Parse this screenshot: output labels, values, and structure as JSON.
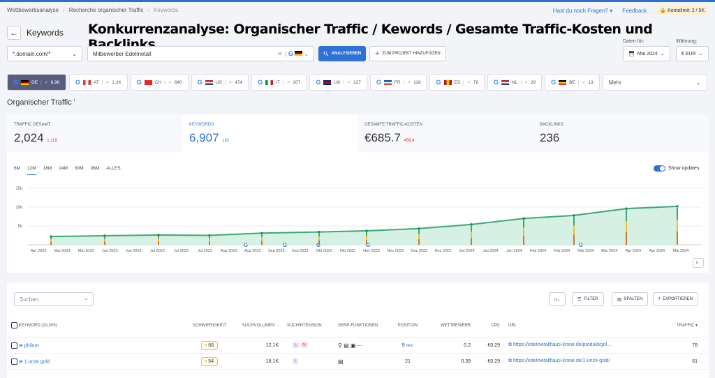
{
  "breadcrumb": [
    "Wettbewerbsanalyse",
    "Recherche organischer Traffic",
    "Keywords"
  ],
  "top": {
    "help": "Hast du noch Fragen?",
    "feedback": "Feedback",
    "limit": "Kontolimit: 2 / 5K"
  },
  "page_title": "Keywords",
  "overlay_title": "Konkurrenzanalyse: Organischer Traffic / Kewords / Gesamte Traffic-Kosten und Backlinks",
  "search": {
    "scope": "*.domain.com/*",
    "query": "Mitbewerber Edelmetall",
    "analyze": "ANALYSIEREN",
    "add_project": "ZUM PROJEKT HINZUFÜGEN",
    "date_label": "Daten für:",
    "date": "Mai 2024",
    "currency_label": "Währung:",
    "currency": "€ EUR"
  },
  "countries": [
    {
      "code": "DE",
      "count": "6.9K",
      "colors": [
        "#000",
        "#d00",
        "#fc0"
      ]
    },
    {
      "code": "AT",
      "count": "1.2K",
      "colors": [
        "#e33",
        "#fff",
        "#e33"
      ]
    },
    {
      "code": "CH",
      "count": "640",
      "colors": [
        "#e22",
        "#e22",
        "#e22"
      ]
    },
    {
      "code": "US",
      "count": "474",
      "colors": [
        "#b22",
        "#fff",
        "#3c3b6e"
      ]
    },
    {
      "code": "IT",
      "count": "207",
      "colors": [
        "#093",
        "#fff",
        "#c22"
      ]
    },
    {
      "code": "UK",
      "count": "127",
      "colors": [
        "#012169",
        "#c8102e",
        "#012169"
      ]
    },
    {
      "code": "FR",
      "count": "118",
      "colors": [
        "#0055a4",
        "#fff",
        "#ef4135"
      ]
    },
    {
      "code": "ES",
      "count": "78",
      "colors": [
        "#c60b1e",
        "#ffc400",
        "#c60b1e"
      ]
    },
    {
      "code": "NL",
      "count": "29",
      "colors": [
        "#ae1c28",
        "#fff",
        "#21468b"
      ]
    },
    {
      "code": "BE",
      "count": "13",
      "colors": [
        "#000",
        "#fdda24",
        "#ef3340"
      ]
    }
  ],
  "more": "Mehr",
  "section_title": "Organischer Traffic",
  "metrics": [
    {
      "label": "TRAFFIC GESAMT",
      "value": "2,024",
      "delta": "1,119",
      "delta_color": "#d33"
    },
    {
      "label": "KEYWORDS",
      "value": "6,907",
      "delta": "182",
      "delta_color": "#2a9d5c"
    },
    {
      "label": "GESAMTE TRAFFIC-KOSTEN",
      "value": "€685.7",
      "delta": "458.4",
      "delta_color": "#d33"
    },
    {
      "label": "BACKLINKS",
      "value": "236",
      "delta": "",
      "delta_color": "#d33"
    }
  ],
  "periods": [
    "6M",
    "12M",
    "18M",
    "24M",
    "30M",
    "36M",
    "ALLES"
  ],
  "active_period": "12M",
  "show_updates": "Show updates",
  "chart_data": {
    "type": "area",
    "y_ticks": [
      "5k",
      "10k",
      "15k"
    ],
    "ylim": [
      0,
      15000
    ],
    "x_tick_labels": [
      "Apr 2023",
      "Mai 2023",
      "Mai 2023",
      "Jun 2023",
      "Jun 2023",
      "Jul 2023",
      "Jul 2023",
      "Jul 2023",
      "Aug 2023",
      "Aug 2023",
      "Sep 2023",
      "Sep 2023",
      "Okt 2023",
      "Okt 2023",
      "Nov 2023",
      "Nov 2023",
      "Dez 2023",
      "Dez 2023",
      "Jan 2024",
      "Jan 2024",
      "Jan 2024",
      "Feb 2024",
      "Feb 2024",
      "Mär 2024",
      "Mär 2024",
      "Apr 2024",
      "Apr 2024",
      "Mai 2024"
    ],
    "x": [
      "Apr 2023",
      "Mai 2023",
      "Jun 2023",
      "Jul 2023",
      "Aug 2023",
      "Sep 2023",
      "Okt 2023",
      "Nov 2023",
      "Dez 2023",
      "Jan 2024",
      "Feb 2024",
      "Mär 2024",
      "Mai 2024"
    ],
    "values": [
      2200,
      2400,
      2600,
      2500,
      3100,
      3400,
      3700,
      4300,
      5400,
      7000,
      7800,
      9600,
      10200
    ],
    "google_updates": [
      "Aug 2023",
      "Sep 2023",
      "Okt 2023",
      "Nov 2023",
      "Mär 2024"
    ],
    "color": "#3aa876",
    "grid": true
  },
  "toolbar": {
    "search_placeholder": "Suchen",
    "filter": "FILTER",
    "columns": "SPALTEN",
    "export": "EXPORTIEREN"
  },
  "table": {
    "headers": [
      "KEYWORD (10,205)",
      "SCHWIERIGKEIT",
      "SUCHVOLUMEN",
      "SUCHINTENSION",
      "SERP-FUNKTIONEN",
      "POSITION",
      "WETTBEWERB",
      "CPC",
      "URL",
      "TRAFFIC"
    ],
    "rows": [
      {
        "keyword": "philoro",
        "difficulty": "66",
        "volume": "12.1K",
        "intents": [
          "L",
          "N"
        ],
        "position": "9",
        "badge": "NEU",
        "competition": "0.2",
        "cpc": "€0.29",
        "url": "https://edelmetallhaus-krone.de/produkt/gol...",
        "traffic": "78"
      },
      {
        "keyword": "1 unze gold",
        "difficulty": "54",
        "volume": "18.1K",
        "intents": [
          "I"
        ],
        "position": "21",
        "badge": "",
        "competition": "0.39",
        "cpc": "€0.29",
        "url": "https://edelmetallhaus-krone.de/1-unze-gold/",
        "traffic": "61"
      }
    ]
  }
}
